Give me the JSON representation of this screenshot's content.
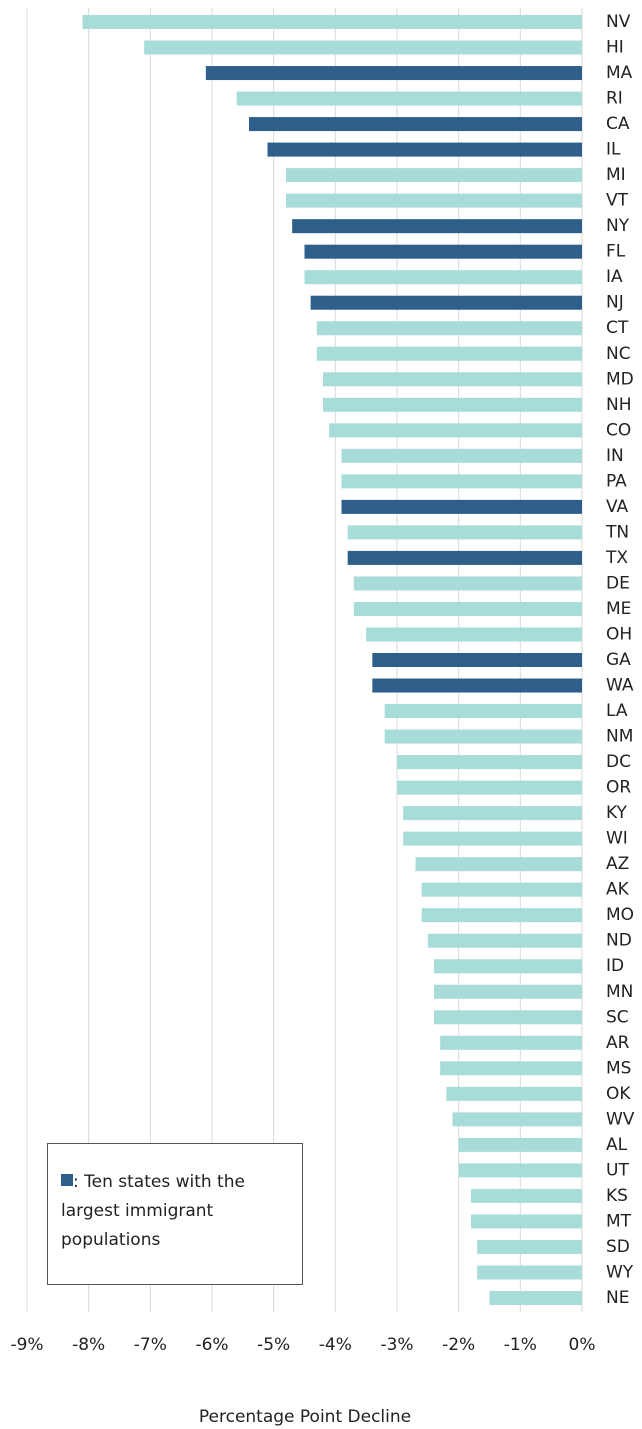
{
  "chart_data": {
    "type": "bar",
    "orientation": "horizontal",
    "x_label": "Percentage Point Decline",
    "categories": [
      "NV",
      "HI",
      "MA",
      "RI",
      "CA",
      "IL",
      "MI",
      "VT",
      "NY",
      "FL",
      "IA",
      "NJ",
      "CT",
      "NC",
      "MD",
      "NH",
      "CO",
      "IN",
      "PA",
      "VA",
      "TN",
      "TX",
      "DE",
      "ME",
      "OH",
      "GA",
      "WA",
      "LA",
      "NM",
      "DC",
      "OR",
      "KY",
      "WI",
      "AZ",
      "AK",
      "MO",
      "ND",
      "ID",
      "MN",
      "SC",
      "AR",
      "MS",
      "OK",
      "WV",
      "AL",
      "UT",
      "KS",
      "MT",
      "SD",
      "WY",
      "NE"
    ],
    "values": [
      -8.1,
      -7.1,
      -6.1,
      -5.6,
      -5.4,
      -5.1,
      -4.8,
      -4.8,
      -4.7,
      -4.5,
      -4.5,
      -4.4,
      -4.3,
      -4.3,
      -4.2,
      -4.2,
      -4.1,
      -3.9,
      -3.9,
      -3.9,
      -3.8,
      -3.8,
      -3.7,
      -3.7,
      -3.5,
      -3.4,
      -3.4,
      -3.2,
      -3.2,
      -3.0,
      -3.0,
      -2.9,
      -2.9,
      -2.7,
      -2.6,
      -2.6,
      -2.5,
      -2.4,
      -2.4,
      -2.4,
      -2.3,
      -2.3,
      -2.2,
      -2.1,
      -2.0,
      -2.0,
      -1.8,
      -1.8,
      -1.7,
      -1.7,
      -1.5
    ],
    "colors": [
      "#a8dcd9",
      "#a8dcd9",
      "#2e5f8a",
      "#a8dcd9",
      "#2e5f8a",
      "#2e5f8a",
      "#a8dcd9",
      "#a8dcd9",
      "#2e5f8a",
      "#2e5f8a",
      "#a8dcd9",
      "#2e5f8a",
      "#a8dcd9",
      "#a8dcd9",
      "#a8dcd9",
      "#a8dcd9",
      "#a8dcd9",
      "#a8dcd9",
      "#a8dcd9",
      "#2e5f8a",
      "#a8dcd9",
      "#2e5f8a",
      "#a8dcd9",
      "#a8dcd9",
      "#a8dcd9",
      "#2e5f8a",
      "#2e5f8a",
      "#a8dcd9",
      "#a8dcd9",
      "#a8dcd9",
      "#a8dcd9",
      "#a8dcd9",
      "#a8dcd9",
      "#a8dcd9",
      "#a8dcd9",
      "#a8dcd9",
      "#a8dcd9",
      "#a8dcd9",
      "#a8dcd9",
      "#a8dcd9",
      "#a8dcd9",
      "#a8dcd9",
      "#a8dcd9",
      "#a8dcd9",
      "#a8dcd9",
      "#a8dcd9",
      "#a8dcd9",
      "#a8dcd9",
      "#a8dcd9",
      "#a8dcd9",
      "#a8dcd9"
    ],
    "legend": {
      "label": ": Ten states with the largest immigrant populations",
      "color": "#2e5f8a",
      "position": "lower left"
    },
    "xlim": [
      -9,
      0
    ],
    "xticks": [
      {
        "value": -9,
        "label": "-9%"
      },
      {
        "value": -8,
        "label": "-8%"
      },
      {
        "value": -7,
        "label": "-7%"
      },
      {
        "value": -6,
        "label": "-6%"
      },
      {
        "value": -5,
        "label": "-5%"
      },
      {
        "value": -4,
        "label": "-4%"
      },
      {
        "value": -3,
        "label": "-3%"
      },
      {
        "value": -2,
        "label": "-2%"
      },
      {
        "value": -1,
        "label": "-1%"
      },
      {
        "value": 0,
        "label": "0%"
      }
    ],
    "grid": true
  }
}
